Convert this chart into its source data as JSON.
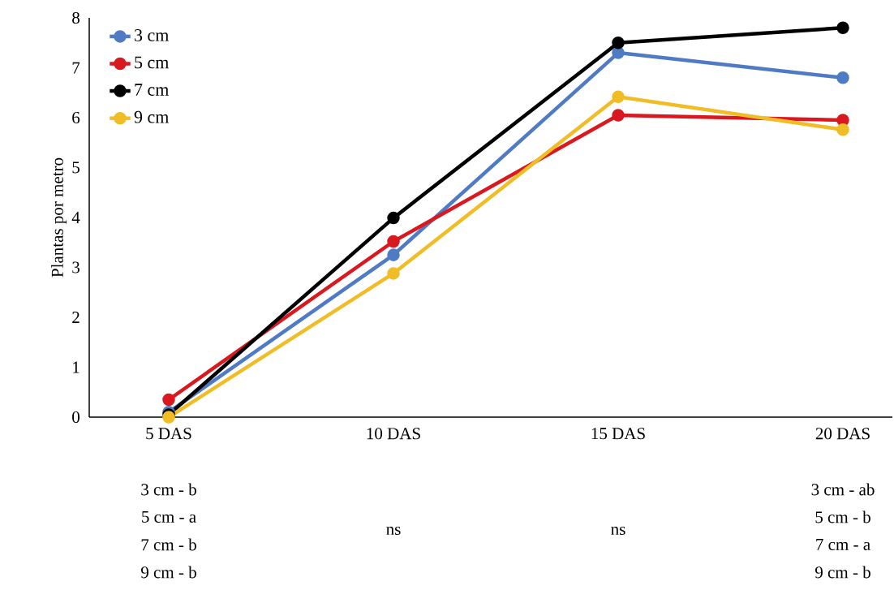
{
  "chart_data": {
    "type": "line",
    "ylabel": "Plantas por metro",
    "categories": [
      "5 DAS",
      "10 DAS",
      "15 DAS",
      "20 DAS"
    ],
    "ylim": [
      0,
      8
    ],
    "yticks": [
      0,
      1,
      2,
      3,
      4,
      5,
      6,
      7,
      8
    ],
    "legend": "top left",
    "marker": "circle",
    "line_style": "solid",
    "series": [
      {
        "name": "3 cm",
        "color": "#4f7bc4",
        "values": [
          0.1,
          3.25,
          7.3,
          6.8
        ]
      },
      {
        "name": "5 cm",
        "color": "#d9181f",
        "values": [
          0.35,
          3.52,
          6.05,
          5.95
        ]
      },
      {
        "name": "7 cm",
        "color": "#000000",
        "values": [
          0.05,
          3.99,
          7.5,
          7.8
        ]
      },
      {
        "name": "9 cm",
        "color": "#f0bd27",
        "values": [
          0,
          2.88,
          6.42,
          5.76
        ]
      }
    ],
    "annotations": [
      "3 cm - b",
      "5 cm - a",
      "7 cm - b",
      "9 cm - b",
      "ns",
      "ns",
      "3 cm - ab",
      "5 cm - b",
      "7 cm - a",
      "9 cm - b"
    ]
  }
}
